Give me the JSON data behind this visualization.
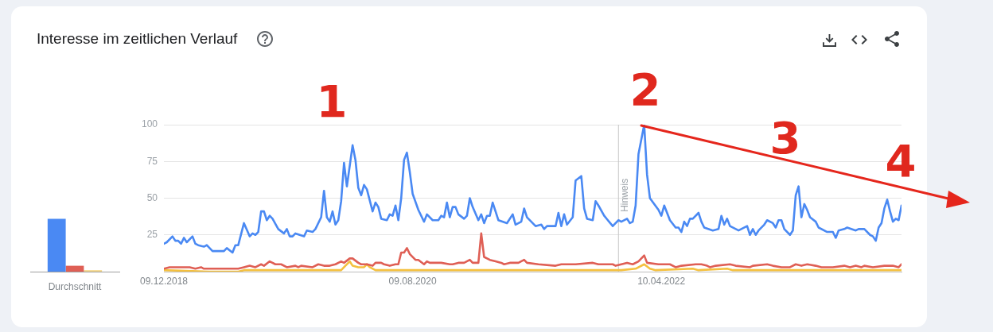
{
  "chart_data": [
    {
      "type": "bar",
      "categories": [
        "Durchschnitt"
      ],
      "series": [
        {
          "color": "#4a89f3",
          "values": [
            36
          ]
        },
        {
          "color": "#df5f55",
          "values": [
            4
          ]
        },
        {
          "color": "#f5d688",
          "values": [
            1
          ]
        }
      ],
      "ylim": [
        0,
        100
      ],
      "tick_labels": "x",
      "legend": false
    },
    {
      "type": "line",
      "title": "Interesse im zeitlichen Verlauf",
      "xlim": [
        "2018-12-09",
        "2023-11-19"
      ],
      "xticks": [
        {
          "value": "2018-12-09",
          "label": "09.12.2018"
        },
        {
          "value": "2020-08-09",
          "label": "09.08.2020"
        },
        {
          "value": "2022-04-10",
          "label": "10.04.2022"
        }
      ],
      "ylim": [
        0,
        100
      ],
      "yticks": [
        25,
        50,
        75,
        100
      ],
      "grid": "y",
      "legend": false,
      "ref_lines": [
        {
          "axis": "x",
          "value": "2021-12-26",
          "label": "Hinweis"
        }
      ],
      "annotations": [
        "1",
        "2",
        "3",
        "4"
      ],
      "series": [
        {
          "color": "#4a89f3",
          "x": [
            "2018-12-09",
            "2018-12-16",
            "2018-12-30",
            "2019-01-06",
            "2019-01-13",
            "2019-01-20",
            "2019-01-27",
            "2019-02-03",
            "2019-02-17",
            "2019-02-24",
            "2019-03-03",
            "2019-03-17",
            "2019-03-24",
            "2019-04-07",
            "2019-04-21",
            "2019-05-05",
            "2019-05-12",
            "2019-05-26",
            "2019-06-02",
            "2019-06-09",
            "2019-06-23",
            "2019-07-07",
            "2019-07-14",
            "2019-07-21",
            "2019-07-28",
            "2019-08-04",
            "2019-08-11",
            "2019-08-18",
            "2019-08-25",
            "2019-09-01",
            "2019-09-15",
            "2019-09-29",
            "2019-10-06",
            "2019-10-13",
            "2019-10-20",
            "2019-10-27",
            "2019-11-17",
            "2019-11-24",
            "2019-12-08",
            "2019-12-15",
            "2019-12-29",
            "2020-01-05",
            "2020-01-12",
            "2020-01-19",
            "2020-01-26",
            "2020-02-02",
            "2020-02-09",
            "2020-02-16",
            "2020-02-23",
            "2020-03-01",
            "2020-03-15",
            "2020-03-22",
            "2020-03-29",
            "2020-04-05",
            "2020-04-12",
            "2020-04-19",
            "2020-05-03",
            "2020-05-10",
            "2020-05-17",
            "2020-05-24",
            "2020-06-07",
            "2020-06-14",
            "2020-06-21",
            "2020-06-28",
            "2020-07-05",
            "2020-07-12",
            "2020-07-19",
            "2020-07-26",
            "2020-08-02",
            "2020-08-09",
            "2020-08-23",
            "2020-09-06",
            "2020-09-13",
            "2020-09-27",
            "2020-10-11",
            "2020-10-18",
            "2020-10-25",
            "2020-11-01",
            "2020-11-08",
            "2020-11-15",
            "2020-11-22",
            "2020-11-29",
            "2020-12-13",
            "2020-12-20",
            "2020-12-27",
            "2021-01-03",
            "2021-01-17",
            "2021-01-24",
            "2021-01-31",
            "2021-02-07",
            "2021-02-14",
            "2021-02-21",
            "2021-02-28",
            "2021-03-07",
            "2021-03-28",
            "2021-04-11",
            "2021-04-18",
            "2021-05-02",
            "2021-05-09",
            "2021-05-16",
            "2021-06-06",
            "2021-06-20",
            "2021-06-27",
            "2021-07-04",
            "2021-07-25",
            "2021-08-01",
            "2021-08-08",
            "2021-08-15",
            "2021-08-22",
            "2021-09-05",
            "2021-09-12",
            "2021-09-26",
            "2021-10-03",
            "2021-10-10",
            "2021-10-24",
            "2021-10-31",
            "2021-11-07",
            "2021-11-21",
            "2021-12-12",
            "2021-12-19",
            "2021-12-26",
            "2022-01-02",
            "2022-01-16",
            "2022-01-23",
            "2022-01-30",
            "2022-02-06",
            "2022-02-13",
            "2022-02-27",
            "2022-03-06",
            "2022-03-13",
            "2022-04-03",
            "2022-04-10",
            "2022-04-17",
            "2022-04-24",
            "2022-05-01",
            "2022-05-15",
            "2022-05-22",
            "2022-05-29",
            "2022-06-05",
            "2022-06-12",
            "2022-06-19",
            "2022-06-26",
            "2022-07-10",
            "2022-07-17",
            "2022-07-24",
            "2022-08-14",
            "2022-08-28",
            "2022-09-04",
            "2022-09-11",
            "2022-09-18",
            "2022-09-25",
            "2022-10-16",
            "2022-11-06",
            "2022-11-13",
            "2022-11-20",
            "2022-11-27",
            "2022-12-04",
            "2022-12-18",
            "2022-12-25",
            "2023-01-08",
            "2023-01-15",
            "2023-01-22",
            "2023-01-29",
            "2023-02-05",
            "2023-02-19",
            "2023-02-26",
            "2023-03-05",
            "2023-03-12",
            "2023-03-19",
            "2023-03-26",
            "2023-04-02",
            "2023-04-09",
            "2023-04-23",
            "2023-04-30",
            "2023-05-21",
            "2023-06-04",
            "2023-06-11",
            "2023-06-18",
            "2023-07-02",
            "2023-07-09",
            "2023-07-30",
            "2023-08-06",
            "2023-08-20",
            "2023-09-03",
            "2023-09-10",
            "2023-09-17",
            "2023-09-24",
            "2023-10-01",
            "2023-10-08",
            "2023-10-15",
            "2023-10-22",
            "2023-10-29",
            "2023-11-05",
            "2023-11-12",
            "2023-11-19"
          ],
          "values": [
            19,
            20,
            24,
            21,
            21,
            19,
            23,
            20,
            24,
            19,
            18,
            17,
            18,
            14,
            14,
            14,
            16,
            13,
            18,
            18,
            33,
            24,
            26,
            25,
            27,
            41,
            41,
            35,
            38,
            36,
            29,
            26,
            29,
            24,
            24,
            26,
            24,
            28,
            27,
            29,
            37,
            55,
            37,
            34,
            41,
            32,
            35,
            48,
            74,
            58,
            86,
            76,
            57,
            52,
            59,
            56,
            41,
            47,
            44,
            36,
            35,
            39,
            38,
            45,
            35,
            50,
            76,
            81,
            68,
            53,
            42,
            34,
            39,
            35,
            35,
            38,
            37,
            47,
            37,
            44,
            44,
            39,
            36,
            38,
            50,
            44,
            35,
            39,
            33,
            38,
            38,
            47,
            41,
            35,
            33,
            39,
            32,
            34,
            43,
            37,
            31,
            32,
            29,
            31,
            31,
            40,
            31,
            39,
            32,
            37,
            62,
            65,
            43,
            36,
            35,
            48,
            45,
            38,
            31,
            33,
            35,
            34,
            36,
            33,
            34,
            45,
            80,
            100,
            66,
            50,
            42,
            38,
            45,
            40,
            35,
            30,
            30,
            27,
            34,
            31,
            36,
            36,
            40,
            34,
            30,
            28,
            29,
            38,
            32,
            36,
            31,
            28,
            31,
            25,
            29,
            25,
            28,
            32,
            35,
            33,
            30,
            35,
            35,
            29,
            25,
            28,
            52,
            58,
            37,
            46,
            42,
            37,
            34,
            30,
            27,
            27,
            23,
            28,
            29,
            30,
            28,
            29,
            29,
            25,
            24,
            21,
            30,
            33,
            43,
            49,
            41,
            34,
            36,
            35,
            45
          ]
        },
        {
          "color": "#df5f55",
          "x": [
            "2018-12-09",
            "2018-12-23",
            "2019-02-10",
            "2019-02-24",
            "2019-03-10",
            "2019-03-17",
            "2019-06-09",
            "2019-06-23",
            "2019-07-07",
            "2019-07-21",
            "2019-08-04",
            "2019-08-11",
            "2019-08-25",
            "2019-09-08",
            "2019-09-22",
            "2019-10-06",
            "2019-10-27",
            "2019-11-03",
            "2019-11-10",
            "2019-12-08",
            "2019-12-22",
            "2020-01-05",
            "2020-01-19",
            "2020-02-02",
            "2020-02-16",
            "2020-02-23",
            "2020-03-08",
            "2020-03-15",
            "2020-03-29",
            "2020-04-05",
            "2020-04-19",
            "2020-05-03",
            "2020-05-10",
            "2020-05-24",
            "2020-05-31",
            "2020-06-14",
            "2020-06-28",
            "2020-07-05",
            "2020-07-12",
            "2020-07-19",
            "2020-07-26",
            "2020-08-02",
            "2020-08-16",
            "2020-08-23",
            "2020-09-06",
            "2020-09-13",
            "2020-09-20",
            "2020-10-18",
            "2020-11-08",
            "2020-11-15",
            "2020-11-29",
            "2020-12-13",
            "2020-12-27",
            "2021-01-03",
            "2021-01-17",
            "2021-01-24",
            "2021-01-31",
            "2021-02-14",
            "2021-02-28",
            "2021-03-14",
            "2021-03-21",
            "2021-04-04",
            "2021-04-25",
            "2021-05-09",
            "2021-05-16",
            "2021-06-13",
            "2021-07-25",
            "2021-08-08",
            "2021-09-12",
            "2021-10-24",
            "2021-11-07",
            "2021-12-12",
            "2021-12-19",
            "2022-01-02",
            "2022-01-16",
            "2022-01-30",
            "2022-02-13",
            "2022-02-27",
            "2022-03-06",
            "2022-04-03",
            "2022-05-01",
            "2022-05-15",
            "2022-05-29",
            "2022-07-03",
            "2022-07-17",
            "2022-07-31",
            "2022-08-07",
            "2022-08-21",
            "2022-09-25",
            "2022-10-09",
            "2022-11-13",
            "2022-11-20",
            "2022-12-25",
            "2023-01-08",
            "2023-01-29",
            "2023-02-19",
            "2023-03-05",
            "2023-03-19",
            "2023-04-02",
            "2023-04-23",
            "2023-05-07",
            "2023-06-04",
            "2023-07-02",
            "2023-07-16",
            "2023-07-30",
            "2023-08-13",
            "2023-08-20",
            "2023-09-10",
            "2023-10-08",
            "2023-10-29",
            "2023-11-12",
            "2023-11-19"
          ],
          "values": [
            2,
            3,
            3,
            2,
            3,
            2,
            2,
            3,
            4,
            3,
            5,
            4,
            7,
            5,
            5,
            3,
            4,
            3,
            4,
            3,
            5,
            4,
            4,
            5,
            7,
            6,
            9,
            9,
            6,
            5,
            5,
            4,
            6,
            6,
            5,
            4,
            5,
            5,
            13,
            13,
            16,
            12,
            8,
            8,
            5,
            7,
            6,
            6,
            5,
            5,
            6,
            6,
            8,
            6,
            6,
            26,
            10,
            8,
            7,
            6,
            5,
            6,
            6,
            8,
            6,
            5,
            4,
            5,
            5,
            6,
            5,
            5,
            4,
            5,
            6,
            5,
            7,
            11,
            6,
            5,
            5,
            3,
            4,
            5,
            5,
            4,
            3,
            4,
            5,
            4,
            3,
            4,
            5,
            4,
            3,
            3,
            5,
            4,
            5,
            4,
            3,
            3,
            4,
            3,
            4,
            3,
            4,
            3,
            4,
            4,
            3,
            5
          ]
        },
        {
          "color": "#f4c03f",
          "x": [
            "2018-12-09",
            "2019-03-31",
            "2019-06-09",
            "2019-06-23",
            "2020-02-16",
            "2020-02-23",
            "2020-03-08",
            "2020-03-15",
            "2020-03-29",
            "2020-04-12",
            "2020-04-19",
            "2020-04-26",
            "2020-05-10",
            "2021-03-28",
            "2022-01-02",
            "2022-02-06",
            "2022-02-27",
            "2022-03-13",
            "2022-03-27",
            "2022-06-26",
            "2022-07-10",
            "2022-09-18",
            "2022-10-02",
            "2023-11-19"
          ],
          "values": [
            1,
            0,
            0,
            1,
            1,
            3,
            7,
            4,
            3,
            3,
            5,
            3,
            1,
            1,
            1,
            2,
            5,
            2,
            1,
            2,
            1,
            2,
            1,
            1
          ]
        }
      ]
    }
  ]
}
